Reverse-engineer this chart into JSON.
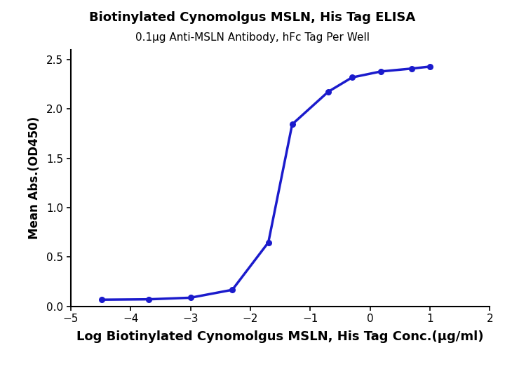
{
  "title": "Biotinylated Cynomolgus MSLN, His Tag ELISA",
  "subtitle": "0.1μg Anti-MSLN Antibody, hFc Tag Per Well",
  "xlabel": "Log Biotinylated Cynomolgus MSLN, His Tag Conc.(μg/ml)",
  "ylabel": "Mean Abs.(OD450)",
  "curve_color": "#1b1bcc",
  "dot_color": "#1b1bcc",
  "xlim": [
    -5,
    2
  ],
  "ylim": [
    0,
    2.6
  ],
  "xticks": [
    -5,
    -4,
    -3,
    -2,
    -1,
    0,
    1,
    2
  ],
  "yticks": [
    0.0,
    0.5,
    1.0,
    1.5,
    2.0,
    2.5
  ],
  "data_x": [
    -4.477,
    -3.699,
    -3.0,
    -2.301,
    -1.699,
    -1.301,
    -0.699,
    -0.301,
    0.176,
    0.699,
    1.0
  ],
  "data_y": [
    0.068,
    0.072,
    0.088,
    0.168,
    0.648,
    1.845,
    2.175,
    2.32,
    2.38,
    2.41,
    2.43
  ],
  "title_fontsize": 13,
  "subtitle_fontsize": 11,
  "xlabel_fontsize": 13,
  "ylabel_fontsize": 12,
  "tick_fontsize": 11,
  "background_color": "#ffffff",
  "line_width": 2.5,
  "marker_size": 6.5
}
